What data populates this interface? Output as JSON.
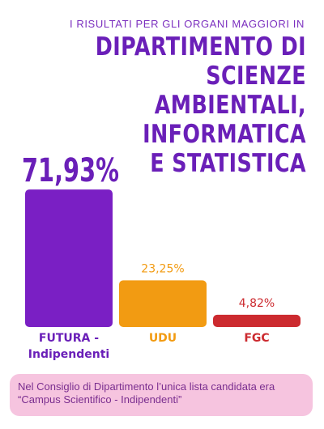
{
  "header": {
    "kicker": "I RISULTATI PER GLI ORGANI MAGGIORI IN",
    "title_line1": "DIPARTIMENTO DI SCIENZE",
    "title_line2": "AMBIENTALI, INFORMATICA",
    "title_line3": "E STATISTICA"
  },
  "chart_data": {
    "type": "bar",
    "categories": [
      [
        "FUTURA -",
        "Indipendenti"
      ],
      [
        "UDU"
      ],
      [
        "FGC"
      ]
    ],
    "values": [
      71.93,
      23.25,
      4.82
    ],
    "value_labels": [
      "71,93%",
      "23,25%",
      "4,82%"
    ],
    "colors": [
      "#7a1fc4",
      "#f29b12",
      "#cc2a2f"
    ],
    "label_colors": [
      "#6a1fb8",
      "#f29b12",
      "#cc2a2f"
    ],
    "unit": "%",
    "ylim": [
      0,
      72
    ]
  },
  "footnote": {
    "line1": "Nel Consiglio di Dipartimento l’unica lista candidata era",
    "line2": "“Campus Scientifico - Indipendenti”"
  }
}
